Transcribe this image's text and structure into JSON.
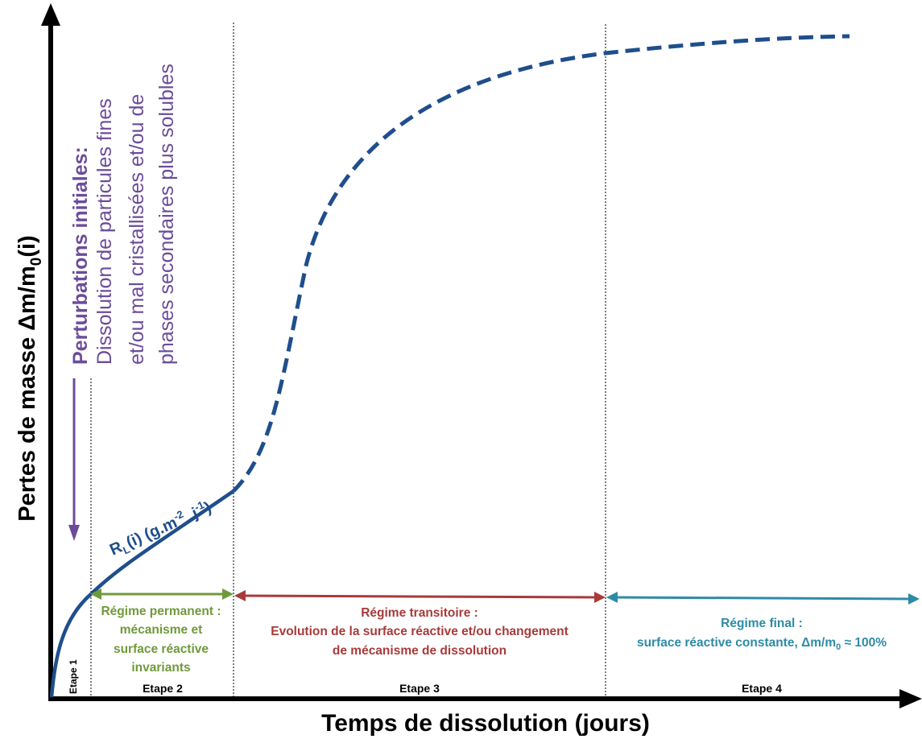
{
  "axes": {
    "y_label_main": "Pertes de masse Δm/m",
    "y_label_sub": "0",
    "y_label_tail": "(i)",
    "x_label": "Temps de dissolution (jours)"
  },
  "perturbation": {
    "title": "Perturbations initiales:",
    "line1": "Dissolution de particules fines",
    "line2": "et/ou mal cristallisées et/ou de",
    "line3": "phases secondaires plus solubles"
  },
  "rate_label": {
    "r": "R",
    "r_sub": "L",
    "i": "(i) (g.m",
    "exp1": "-2",
    "mid": " .j",
    "exp2": "-1",
    "close": ")"
  },
  "regimes": {
    "permanent": {
      "line1": "Régime permanent :",
      "line2": "mécanisme et",
      "line3": "surface réactive",
      "line4": "invariants"
    },
    "transitoire": {
      "line1": "Régime transitoire :",
      "line2": "Evolution de la surface réactive et/ou changement",
      "line3": "de mécanisme de dissolution"
    },
    "final": {
      "line1": "Régime final :",
      "line2a": "surface réactive constante, Δm/m",
      "line2_sub": "0",
      "line2b": " ≈ 100%"
    }
  },
  "stages": {
    "etape1": "Etape 1",
    "etape2": "Etape 2",
    "etape3": "Etape 3",
    "etape4": "Etape 4"
  },
  "colors": {
    "curve": "#1f4e8c",
    "perturbation": "#6b4c9a",
    "permanent": "#6f9a3a",
    "transitoire": "#a83a3a",
    "final": "#2e8ba6",
    "axis": "#000000"
  }
}
